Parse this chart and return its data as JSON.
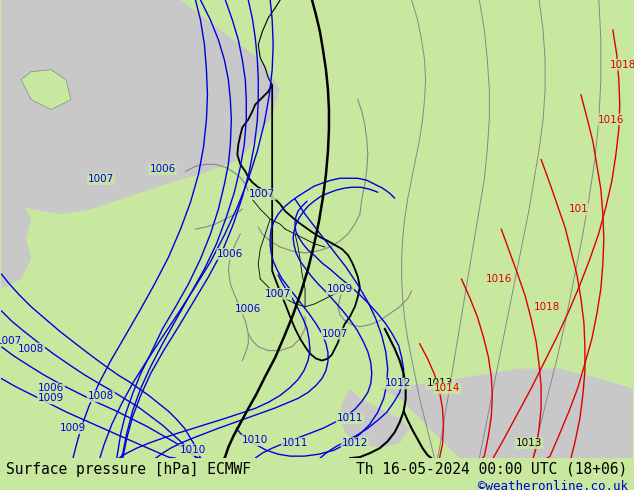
{
  "title_left": "Surface pressure [hPa] ECMWF",
  "title_right": "Th 16-05-2024 00:00 UTC (18+06)",
  "copyright": "©weatheronline.co.uk",
  "bg_land_color": "#c8e8a0",
  "bg_sea_color": "#c8c8c8",
  "bg_gray_color": "#b8b8b8",
  "bottom_bar_color": "#c8e8a0",
  "bottom_text_color": "#000000",
  "copyright_color": "#0000cc",
  "figsize": [
    6.34,
    4.9
  ],
  "dpi": 100,
  "title_fontsize": 10.5,
  "copyright_fontsize": 9,
  "isobar_label_fontsize": 7.5,
  "blue_color": "#0000dd",
  "red_color": "#dd0000",
  "black_color": "#000000",
  "gray_border_color": "#888888"
}
